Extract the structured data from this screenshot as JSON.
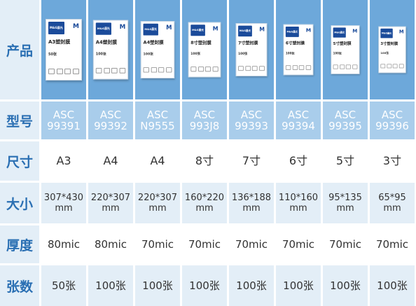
{
  "row_headers": [
    "产品",
    "型号",
    "尺寸",
    "大小",
    "厚度",
    "张数"
  ],
  "brand_logo": "M&G晨光",
  "products": [
    {
      "model_line1": "ASC",
      "model_line2": "99391",
      "size": "A3",
      "dim_line1": "307*430",
      "dim_line2": "mm",
      "thickness": "80mic",
      "count": "50张",
      "box_title": "A3塑封膜",
      "box_count": "50张"
    },
    {
      "model_line1": "ASC",
      "model_line2": "99392",
      "size": "A4",
      "dim_line1": "220*307",
      "dim_line2": "mm",
      "thickness": "80mic",
      "count": "100张",
      "box_title": "A4塑封膜",
      "box_count": "100张"
    },
    {
      "model_line1": "ASC",
      "model_line2": "N9555",
      "size": "A4",
      "dim_line1": "220*307",
      "dim_line2": "mm",
      "thickness": "70mic",
      "count": "100张",
      "box_title": "A4塑封膜",
      "box_count": "100张"
    },
    {
      "model_line1": "ASC",
      "model_line2": "993J8",
      "size": "8寸",
      "dim_line1": "160*220",
      "dim_line2": "mm",
      "thickness": "70mic",
      "count": "100张",
      "box_title": "8寸塑封膜",
      "box_count": "100张"
    },
    {
      "model_line1": "ASC",
      "model_line2": "99393",
      "size": "7寸",
      "dim_line1": "136*188",
      "dim_line2": "mm",
      "thickness": "70mic",
      "count": "100张",
      "box_title": "7寸塑封膜",
      "box_count": "100张"
    },
    {
      "model_line1": "ASC",
      "model_line2": "99394",
      "size": "6寸",
      "dim_line1": "110*160",
      "dim_line2": "mm",
      "thickness": "70mic",
      "count": "100张",
      "box_title": "6寸塑封膜",
      "box_count": "100张"
    },
    {
      "model_line1": "ASC",
      "model_line2": "99395",
      "size": "5寸",
      "dim_line1": "95*135",
      "dim_line2": "mm",
      "thickness": "70mic",
      "count": "100张",
      "box_title": "5寸塑封膜",
      "box_count": "100张"
    },
    {
      "model_line1": "ASC",
      "model_line2": "99396",
      "size": "3寸",
      "dim_line1": "65*95",
      "dim_line2": "mm",
      "thickness": "70mic",
      "count": "100张",
      "box_title": "3寸塑封膜",
      "box_count": "100张"
    }
  ],
  "colors": {
    "header_text": "#2a6fb3",
    "header_bg": "#e3eef7",
    "product_bg": "#6da8da",
    "model_bg": "#a9cdeb",
    "brand_blue": "#1b4b9a"
  }
}
